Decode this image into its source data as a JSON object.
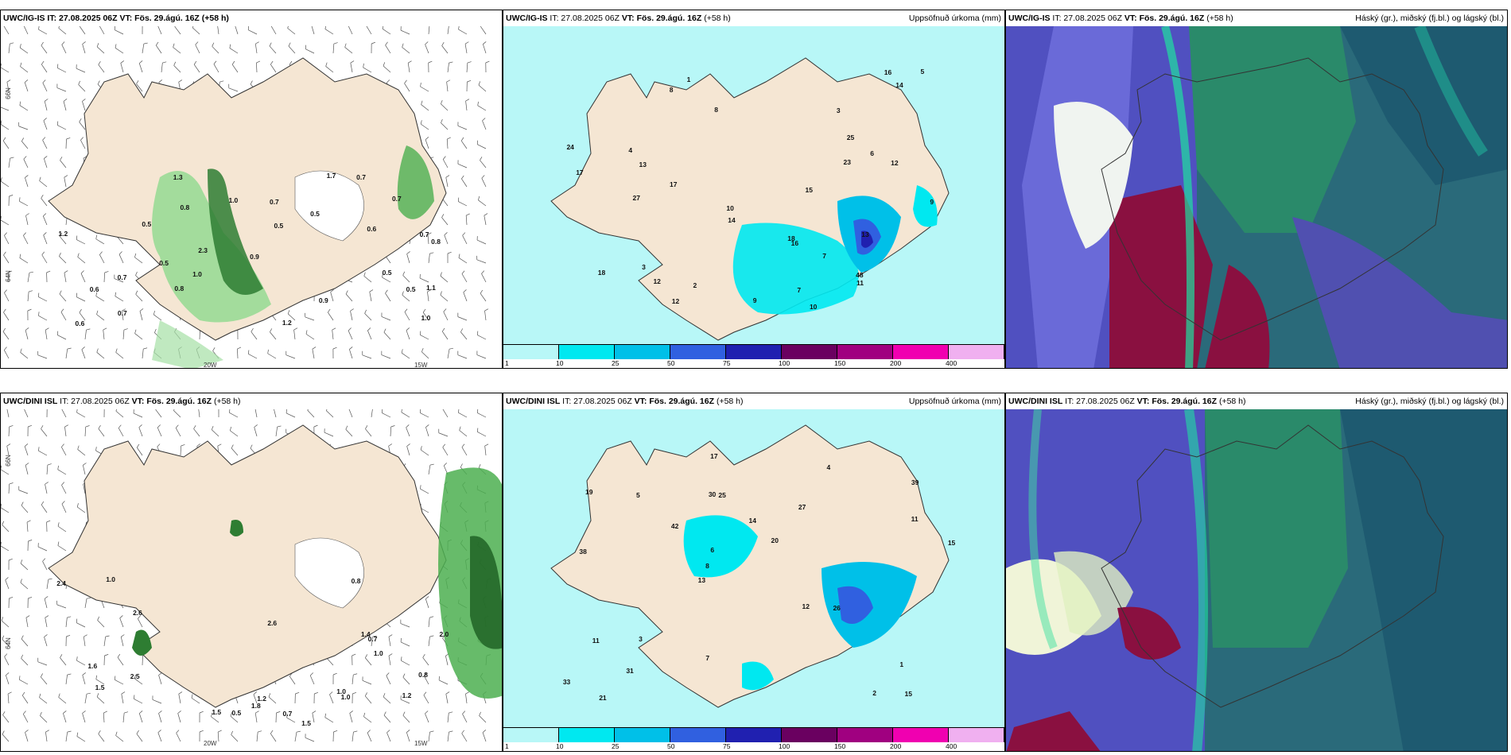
{
  "panels": {
    "p1": {
      "header": "UWC/IG-IS IT: 27.08.2025 06Z VT: Fös. 29.ágú. 16Z (+58 h)",
      "right": ""
    },
    "p2": {
      "model": "UWC/IG-IS",
      "mid": " IT: 27.08.2025 06Z ",
      "vt": "VT: Fös. 29.ágú. 16Z",
      "lead": " (+58 h)",
      "right": "Uppsöfnuð úrkoma (mm)"
    },
    "p3": {
      "model": "UWC/IG-IS",
      "mid": " IT: 27.08.2025 06Z ",
      "vt": "VT: Fös. 29.ágú. 16Z",
      "lead": " (+58 h)",
      "right": "Háský (gr.), miðský (fj.bl.) og lágský (bl.)"
    },
    "p4": {
      "model": "UWC/DINI ISL",
      "mid": " IT: 27.08.2025 06Z ",
      "vt": "VT: Fös. 29.ágú. 16Z",
      "lead": " (+58 h)",
      "right": ""
    },
    "p5": {
      "model": "UWC/DINI ISL",
      "mid": " IT: 27.08.2025 06Z ",
      "vt": "VT: Fös. 29.ágú. 16Z",
      "lead": " (+58 h)",
      "right": "Uppsöfnuð úrkoma (mm)"
    },
    "p6": {
      "model": "UWC/DINI ISL",
      "mid": " IT: 27.08.2025 06Z ",
      "vt": "VT: Fös. 29.ágú. 16Z",
      "lead": " (+58 h)",
      "right": "Háský (gr.), miðský (fj.bl.) og lágský (bl.)"
    }
  },
  "axis_labels": {
    "lat66": "66N",
    "lat64": "64N",
    "lat65": "65N",
    "lat63": "63N",
    "lon20": "20W",
    "lon15": "15W"
  },
  "colorbar": {
    "ticks": [
      "1",
      "10",
      "25",
      "50",
      "75",
      "100",
      "150",
      "200",
      "400"
    ],
    "colors": [
      "#b8f7f7",
      "#00e8f0",
      "#00c0e8",
      "#3060e0",
      "#2020b0",
      "#6a0060",
      "#a00080",
      "#f000b0",
      "#f0b0f0"
    ]
  },
  "wind_labels_top": [
    "0.8",
    "0.7",
    "0.5",
    "0.8",
    "2.3",
    "1.1",
    "1.0",
    "1.7",
    "0.5",
    "0.7",
    "0.5",
    "0.5",
    "0.6",
    "0.8",
    "0.6",
    "0.9",
    "0.5",
    "1.2",
    "1.3",
    "1.0",
    "1.0",
    "0.7",
    "0.7",
    "0.7",
    "0.5",
    "0.7",
    "0.6",
    "0.9",
    "1.2"
  ],
  "wind_labels_bottom": [
    "1.5",
    "1.2",
    "2.6",
    "2.4",
    "2.0",
    "1.5",
    "1.8",
    "1.6",
    "1.4",
    "2.6",
    "2.5",
    "1.2",
    "0.5",
    "1.5",
    "0.8",
    "0.7",
    "1.0",
    "1.0",
    "0.8",
    "0.7",
    "1.0",
    "1.0"
  ],
  "precip_labels_top": [
    "10",
    "8",
    "3",
    "4",
    "6",
    "7",
    "9",
    "17",
    "14",
    "12",
    "18",
    "24",
    "10",
    "18",
    "23",
    "16",
    "17",
    "14",
    "13",
    "12",
    "48",
    "16",
    "12",
    "11",
    "15",
    "25",
    "27",
    "13",
    "9",
    "8",
    "7",
    "5",
    "3",
    "2",
    "1"
  ],
  "precip_labels_bottom": [
    "15",
    "38",
    "39",
    "13",
    "27",
    "21",
    "30",
    "14",
    "11",
    "42",
    "33",
    "31",
    "25",
    "20",
    "26",
    "19",
    "17",
    "15",
    "12",
    "11",
    "8",
    "7",
    "6",
    "5",
    "4",
    "3",
    "2",
    "1"
  ],
  "colors": {
    "land": "#f5e6d3",
    "sea": "#ffffff",
    "precip_light": "#b8f7f7",
    "precip_mid": "#00e8f0",
    "wind_green": "#3aa040"
  }
}
